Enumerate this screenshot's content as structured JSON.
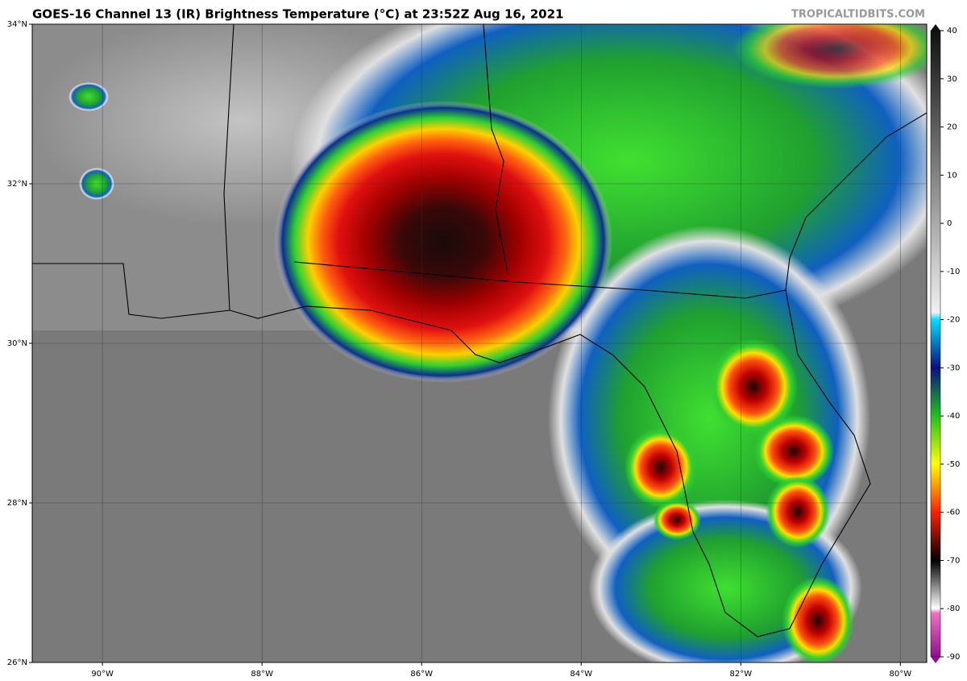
{
  "map": {
    "title": "GOES-16 Channel 13 (IR) Brightness Temperature (°C) at 23:52Z Aug 16, 2021",
    "source": "TROPICALTIDBITS.COM",
    "xlim": [
      -90.88,
      -79.67
    ],
    "ylim": [
      26,
      34
    ],
    "xticks": [
      {
        "value": -90,
        "label": "90°W"
      },
      {
        "value": -88,
        "label": "88°W"
      },
      {
        "value": -86,
        "label": "86°W"
      },
      {
        "value": -84,
        "label": "84°W"
      },
      {
        "value": -82,
        "label": "82°W"
      },
      {
        "value": -80,
        "label": "80°W"
      }
    ],
    "yticks": [
      {
        "value": 26,
        "label": "26°N"
      },
      {
        "value": 28,
        "label": "28°N"
      },
      {
        "value": 30,
        "label": "30°N"
      },
      {
        "value": 32,
        "label": "32°N"
      },
      {
        "value": 34,
        "label": "34°N"
      }
    ],
    "colorbar": {
      "lim": [
        -90,
        40
      ],
      "ticks": [
        40,
        30,
        20,
        10,
        0,
        -10,
        -20,
        -30,
        -40,
        -50,
        -60,
        -70,
        -80,
        -90
      ]
    }
  }
}
